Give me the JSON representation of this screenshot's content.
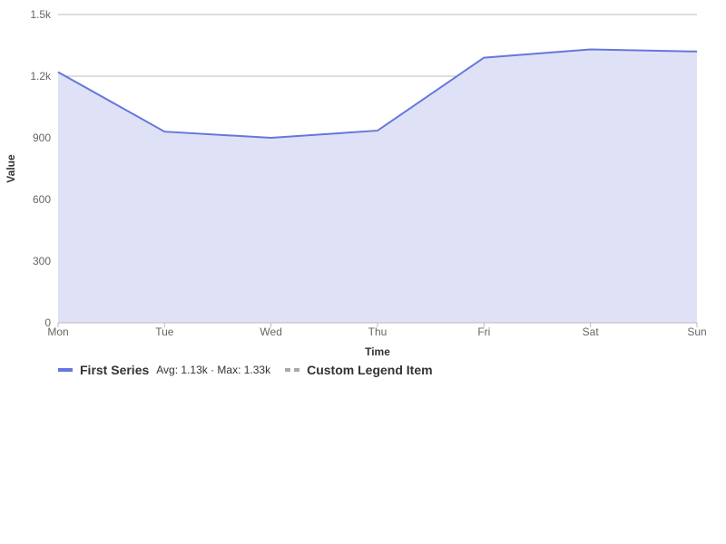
{
  "chart_data": {
    "type": "area",
    "categories": [
      "Mon",
      "Tue",
      "Wed",
      "Thu",
      "Fri",
      "Sat",
      "Sun"
    ],
    "series": [
      {
        "name": "First Series",
        "values": [
          1220,
          930,
          900,
          935,
          1290,
          1330,
          1320
        ]
      }
    ],
    "xlabel": "Time",
    "ylabel": "Value",
    "ylim": [
      0,
      1500
    ],
    "y_ticks": [
      0,
      300,
      600,
      900,
      1200,
      1500
    ],
    "y_tick_labels": [
      "0",
      "300",
      "600",
      "900",
      "1.2k",
      "1.5k"
    ],
    "grid": true,
    "legend_placement": "bottom-left"
  },
  "legend": {
    "items": [
      {
        "name": "First Series",
        "stats": "Avg: 1.13k · Max: 1.33k",
        "style": "solid"
      },
      {
        "name": "Custom Legend Item",
        "stats": "",
        "style": "dashed"
      }
    ]
  },
  "colors": {
    "line": "#6677dd",
    "area": "#dfe2f7",
    "grid": "#bbbbbb",
    "dashed_swatch": "#aaaaaa"
  }
}
